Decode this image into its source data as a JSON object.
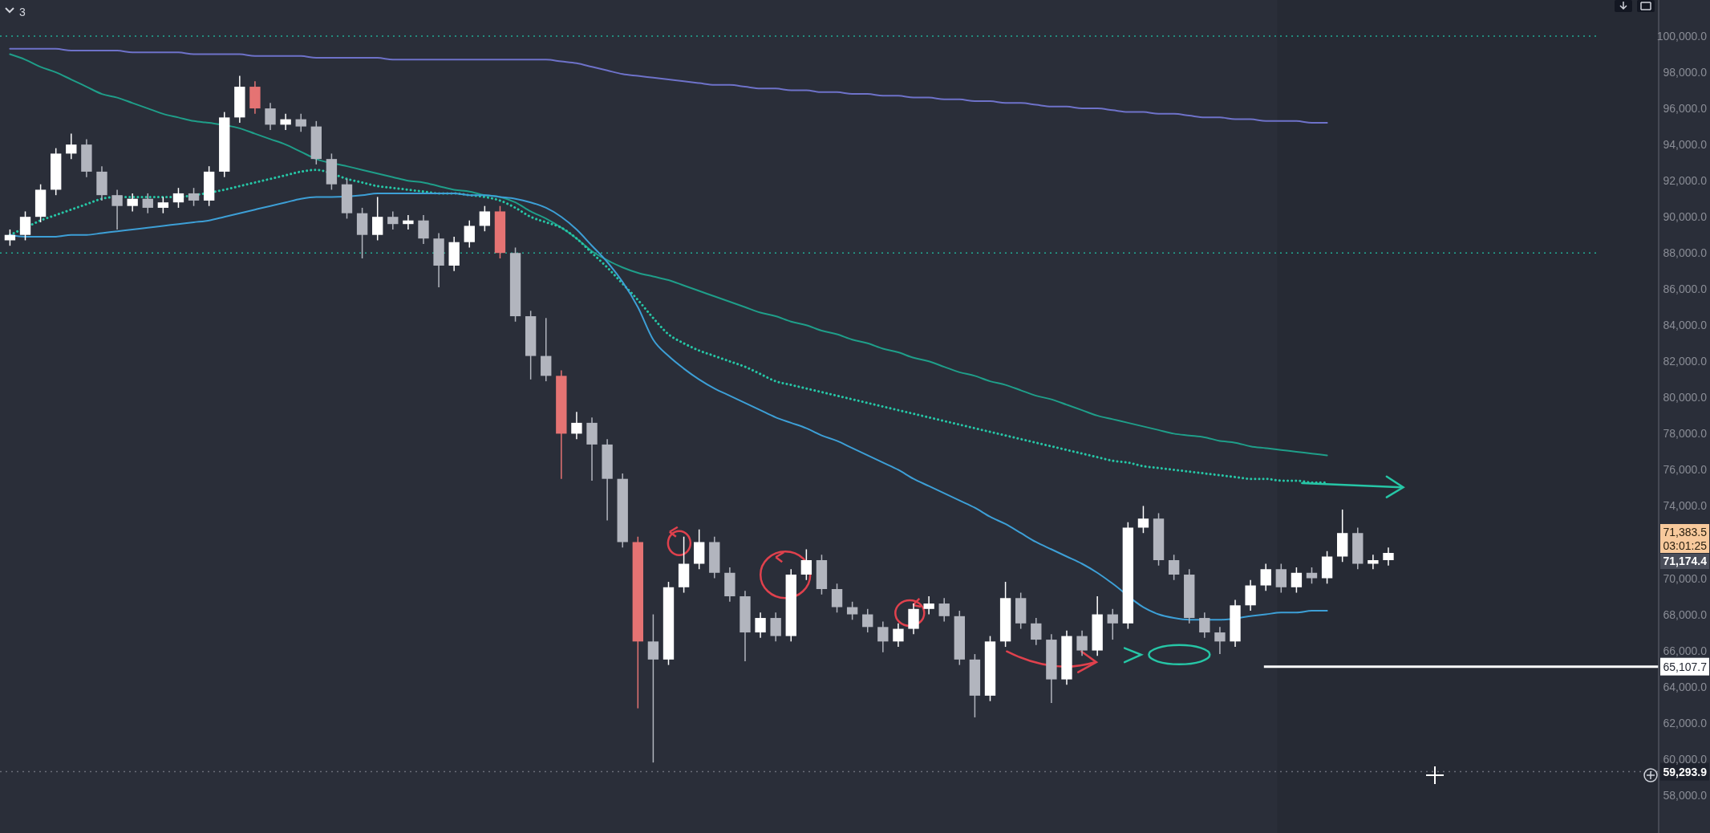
{
  "chart_data": {
    "type": "candlestick",
    "categories": [
      null,
      null,
      null,
      null,
      null,
      null,
      null,
      null,
      null,
      null,
      null,
      null,
      null,
      null,
      null,
      null,
      null,
      null,
      null,
      null,
      null,
      null,
      null,
      null,
      null,
      null,
      null,
      null,
      null,
      null,
      null,
      null,
      null,
      null,
      null,
      null,
      null,
      null,
      null,
      null,
      null,
      null,
      null,
      null,
      null,
      null,
      null,
      null,
      null,
      null,
      null,
      null,
      null,
      null,
      null,
      null,
      null,
      null,
      null,
      null,
      null,
      null,
      null,
      null,
      null,
      null,
      null,
      null,
      null,
      null,
      null,
      null,
      null,
      null,
      null,
      null,
      null,
      null,
      null,
      null,
      null,
      null,
      null,
      null,
      null,
      null,
      null,
      null,
      null,
      null,
      null,
      null,
      null,
      null,
      null,
      null,
      null,
      null,
      null,
      null,
      null,
      null,
      null,
      null,
      null,
      null,
      null,
      null
    ],
    "ohlc": [
      [
        88700,
        89300,
        88400,
        89000
      ],
      [
        89000,
        90300,
        88700,
        90000
      ],
      [
        90000,
        91800,
        89700,
        91500
      ],
      [
        91500,
        93800,
        91200,
        93500
      ],
      [
        93500,
        94600,
        93200,
        94000
      ],
      [
        94000,
        94300,
        92200,
        92500
      ],
      [
        92500,
        92800,
        90900,
        91200
      ],
      [
        91200,
        91500,
        89300,
        90600
      ],
      [
        90600,
        91300,
        90300,
        91000
      ],
      [
        91000,
        91300,
        90200,
        90500
      ],
      [
        90500,
        91100,
        90200,
        90800
      ],
      [
        90800,
        91600,
        90500,
        91300
      ],
      [
        91300,
        91600,
        90600,
        90900
      ],
      [
        90900,
        92800,
        90600,
        92500
      ],
      [
        92500,
        95800,
        92200,
        95500
      ],
      [
        95500,
        97800,
        95200,
        97200
      ],
      [
        97200,
        97500,
        95700,
        96000
      ],
      [
        96000,
        96300,
        94800,
        95100
      ],
      [
        95100,
        95700,
        94800,
        95400
      ],
      [
        95400,
        95700,
        94700,
        95000
      ],
      [
        95000,
        95300,
        92900,
        93200
      ],
      [
        93200,
        93500,
        91500,
        91800
      ],
      [
        91800,
        92100,
        89900,
        90200
      ],
      [
        90200,
        90500,
        87700,
        89000
      ],
      [
        89000,
        91100,
        88700,
        90000
      ],
      [
        90000,
        90300,
        89300,
        89600
      ],
      [
        89600,
        90100,
        89300,
        89800
      ],
      [
        89800,
        90100,
        88500,
        88800
      ],
      [
        88800,
        89100,
        86100,
        87300
      ],
      [
        87300,
        88900,
        87000,
        88600
      ],
      [
        88600,
        89800,
        88300,
        89500
      ],
      [
        89500,
        90600,
        89200,
        90300
      ],
      [
        90300,
        90600,
        87700,
        88000
      ],
      [
        88000,
        88300,
        84200,
        84500
      ],
      [
        84500,
        84800,
        81000,
        82300
      ],
      [
        82300,
        84400,
        80900,
        81200
      ],
      [
        81200,
        81500,
        75500,
        78000
      ],
      [
        78000,
        79200,
        77700,
        78600
      ],
      [
        78600,
        78900,
        75400,
        77400
      ],
      [
        77400,
        77700,
        73200,
        75500
      ],
      [
        75500,
        75800,
        71700,
        72000
      ],
      [
        72000,
        72300,
        62800,
        66500
      ],
      [
        66500,
        68000,
        59800,
        65500
      ],
      [
        65500,
        69800,
        65200,
        69500
      ],
      [
        69500,
        72300,
        69200,
        70800
      ],
      [
        70800,
        72700,
        70500,
        72000
      ],
      [
        72000,
        72300,
        70000,
        70300
      ],
      [
        70300,
        70600,
        68700,
        69000
      ],
      [
        69000,
        69300,
        65400,
        67000
      ],
      [
        67000,
        68100,
        66700,
        67800
      ],
      [
        67800,
        68100,
        66500,
        66800
      ],
      [
        66800,
        70500,
        66500,
        70200
      ],
      [
        70200,
        71600,
        69900,
        71000
      ],
      [
        71000,
        71300,
        69100,
        69400
      ],
      [
        69400,
        69700,
        68100,
        68400
      ],
      [
        68400,
        68700,
        67700,
        68000
      ],
      [
        68000,
        68300,
        67000,
        67300
      ],
      [
        67300,
        67600,
        65900,
        66500
      ],
      [
        66500,
        67500,
        66200,
        67200
      ],
      [
        67200,
        68600,
        66900,
        68300
      ],
      [
        68300,
        69000,
        68000,
        68600
      ],
      [
        68600,
        68900,
        67600,
        67900
      ],
      [
        67900,
        68200,
        65200,
        65500
      ],
      [
        65500,
        65800,
        62300,
        63500
      ],
      [
        63500,
        66800,
        63200,
        66500
      ],
      [
        66500,
        69800,
        66200,
        68900
      ],
      [
        68900,
        69200,
        67200,
        67500
      ],
      [
        67500,
        67800,
        66300,
        66600
      ],
      [
        66600,
        66900,
        63100,
        64400
      ],
      [
        64400,
        67100,
        64100,
        66800
      ],
      [
        66800,
        67100,
        65700,
        66000
      ],
      [
        66000,
        69000,
        65700,
        68000
      ],
      [
        68000,
        68300,
        66600,
        67500
      ],
      [
        67500,
        73100,
        67200,
        72800
      ],
      [
        72800,
        74000,
        72500,
        73300
      ],
      [
        73300,
        73600,
        70700,
        71000
      ],
      [
        71000,
        71300,
        69900,
        70200
      ],
      [
        70200,
        70500,
        67500,
        67800
      ],
      [
        67800,
        68100,
        66700,
        67000
      ],
      [
        67000,
        67300,
        65800,
        66500
      ],
      [
        66500,
        68800,
        66200,
        68500
      ],
      [
        68500,
        69900,
        68200,
        69600
      ],
      [
        69600,
        70800,
        69300,
        70500
      ],
      [
        70500,
        70800,
        69200,
        69500
      ],
      [
        69500,
        70600,
        69200,
        70300
      ],
      [
        70300,
        70600,
        69700,
        70000
      ],
      [
        70000,
        71500,
        69700,
        71200
      ],
      [
        71200,
        73800,
        70900,
        72500
      ],
      [
        72500,
        72800,
        70500,
        70800
      ],
      [
        70800,
        71300,
        70500,
        71000
      ],
      [
        71000,
        71700,
        70700,
        71400
      ],
      null,
      null,
      null,
      null,
      null,
      null,
      null,
      null,
      null,
      null,
      null,
      null,
      null,
      null,
      null,
      null,
      null
    ],
    "colors": [
      "#ffffff",
      "#ffffff",
      "#ffffff",
      "#ffffff",
      "#ffffff",
      "#b2b5be",
      "#b2b5be",
      "#b2b5be",
      "#ffffff",
      "#b2b5be",
      "#ffffff",
      "#ffffff",
      "#b2b5be",
      "#ffffff",
      "#ffffff",
      "#ffffff",
      "#e57373",
      "#b2b5be",
      "#ffffff",
      "#b2b5be",
      "#b2b5be",
      "#b2b5be",
      "#b2b5be",
      "#b2b5be",
      "#ffffff",
      "#b2b5be",
      "#ffffff",
      "#b2b5be",
      "#b2b5be",
      "#ffffff",
      "#ffffff",
      "#ffffff",
      "#e57373",
      "#b2b5be",
      "#b2b5be",
      "#b2b5be",
      "#e57373",
      "#ffffff",
      "#b2b5be",
      "#b2b5be",
      "#b2b5be",
      "#e57373",
      "#b2b5be",
      "#ffffff",
      "#ffffff",
      "#ffffff",
      "#b2b5be",
      "#b2b5be",
      "#b2b5be",
      "#ffffff",
      "#b2b5be",
      "#ffffff",
      "#ffffff",
      "#b2b5be",
      "#b2b5be",
      "#b2b5be",
      "#b2b5be",
      "#b2b5be",
      "#ffffff",
      "#ffffff",
      "#ffffff",
      "#b2b5be",
      "#b2b5be",
      "#b2b5be",
      "#ffffff",
      "#ffffff",
      "#b2b5be",
      "#b2b5be",
      "#b2b5be",
      "#ffffff",
      "#b2b5be",
      "#ffffff",
      "#b2b5be",
      "#ffffff",
      "#ffffff",
      "#b2b5be",
      "#b2b5be",
      "#b2b5be",
      "#b2b5be",
      "#b2b5be",
      "#ffffff",
      "#ffffff",
      "#ffffff",
      "#b2b5be",
      "#ffffff",
      "#b2b5be",
      "#ffffff",
      "#ffffff",
      "#b2b5be",
      "#ffffff",
      "#ffffff",
      null,
      null,
      null,
      null,
      null,
      null,
      null,
      null,
      null,
      null,
      null,
      null,
      null,
      null,
      null,
      null,
      null
    ],
    "series": [
      {
        "type": "line",
        "color": "#6e72c9",
        "line_style": "solid",
        "values": [
          99300,
          99300,
          99300,
          99300,
          99200,
          99200,
          99200,
          99200,
          99100,
          99100,
          99100,
          99100,
          99000,
          99000,
          99000,
          99000,
          98900,
          98900,
          98900,
          98900,
          98800,
          98800,
          98800,
          98800,
          98800,
          98700,
          98700,
          98700,
          98700,
          98700,
          98700,
          98700,
          98700,
          98700,
          98700,
          98700,
          98600,
          98500,
          98300,
          98100,
          97900,
          97800,
          97700,
          97600,
          97500,
          97400,
          97300,
          97300,
          97200,
          97100,
          97100,
          97000,
          97000,
          96900,
          96900,
          96800,
          96800,
          96700,
          96700,
          96600,
          96600,
          96500,
          96500,
          96400,
          96400,
          96300,
          96300,
          96200,
          96100,
          96100,
          96000,
          96000,
          95900,
          95800,
          95800,
          95700,
          95700,
          95600,
          95500,
          95500,
          95400,
          95400,
          95300,
          95300,
          95300,
          95200,
          95200,
          null,
          null,
          null,
          null,
          null,
          null,
          null,
          null,
          null,
          null,
          null,
          null,
          null,
          null,
          null,
          null,
          null,
          null,
          null,
          null,
          null
        ]
      },
      {
        "type": "line",
        "color": "#1f9e89",
        "line_style": "solid",
        "values": [
          99000,
          98700,
          98300,
          98000,
          97600,
          97200,
          96800,
          96600,
          96300,
          96000,
          95700,
          95500,
          95300,
          95200,
          null,
          94900,
          94600,
          94300,
          94000,
          93600,
          93200,
          null,
          92800,
          92600,
          92400,
          92200,
          92000,
          91900,
          91700,
          91500,
          91400,
          91200,
          91100,
          90800,
          90300,
          89900,
          89400,
          88800,
          88100,
          87600,
          87200,
          86900,
          86700,
          86500,
          86200,
          85900,
          85600,
          85300,
          85000,
          84700,
          84500,
          84200,
          84000,
          83700,
          83500,
          83200,
          83000,
          82700,
          82500,
          82200,
          82000,
          81700,
          81400,
          81200,
          80900,
          80700,
          80400,
          80100,
          79900,
          79600,
          79300,
          79000,
          78800,
          78600,
          78400,
          78200,
          78000,
          77900,
          77800,
          77600,
          77500,
          77300,
          77200,
          77100,
          77000,
          76900,
          76800,
          null,
          null,
          null,
          null,
          null,
          null,
          null,
          null,
          null,
          null,
          null,
          null,
          null,
          null,
          null,
          null,
          null,
          null,
          null,
          null,
          null
        ]
      },
      {
        "type": "line",
        "color": "#26c6a6",
        "line_style": "dotted",
        "values": [
          89000,
          89400,
          89800,
          90100,
          90400,
          90700,
          91000,
          91100,
          91100,
          91100,
          91100,
          91100,
          91200,
          null,
          91500,
          91700,
          91900,
          92100,
          92300,
          92500,
          92600,
          92400,
          92100,
          91900,
          91700,
          91600,
          91500,
          91400,
          91300,
          91300,
          91200,
          91100,
          90900,
          90500,
          90000,
          89700,
          89400,
          88800,
          88000,
          87200,
          86300,
          85400,
          84400,
          83500,
          83000,
          82600,
          82300,
          82000,
          81700,
          81300,
          80900,
          80700,
          80500,
          80300,
          80100,
          79900,
          79700,
          79500,
          79300,
          79100,
          78900,
          78700,
          78500,
          78300,
          78100,
          77900,
          77700,
          77500,
          77300,
          77100,
          76900,
          76700,
          76500,
          76400,
          76200,
          76100,
          76000,
          75900,
          75800,
          75700,
          75600,
          75500,
          75500,
          75400,
          75400,
          75300,
          75300,
          null,
          null,
          null,
          null,
          null,
          null,
          null,
          null,
          null,
          null,
          null,
          null,
          null,
          null,
          null,
          null,
          null,
          null,
          null,
          null,
          null
        ]
      },
      {
        "type": "line",
        "color": "#3d9fd6",
        "line_style": "solid",
        "values": [
          89000,
          88900,
          88900,
          88900,
          89000,
          89000,
          89100,
          89200,
          89300,
          89400,
          89500,
          89600,
          89700,
          89800,
          90000,
          90200,
          90400,
          90600,
          90800,
          91000,
          91100,
          91100,
          null,
          91200,
          91300,
          91300,
          91300,
          91300,
          91300,
          91300,
          91200,
          91200,
          91100,
          91000,
          90800,
          90500,
          90000,
          89300,
          88400,
          87500,
          86400,
          85000,
          83200,
          82300,
          81600,
          81000,
          80500,
          80100,
          79700,
          79300,
          78900,
          78600,
          78300,
          77900,
          77600,
          77200,
          76800,
          76400,
          76000,
          75500,
          75100,
          74700,
          74300,
          73900,
          73400,
          73000,
          72500,
          72000,
          71600,
          71200,
          70800,
          70300,
          69700,
          null,
          68400,
          68000,
          67800,
          67700,
          null,
          67700,
          null,
          67900,
          68000,
          68100,
          68100,
          68200,
          68200,
          null,
          null,
          null,
          null,
          null,
          null,
          null,
          null,
          null,
          null,
          null,
          null,
          null,
          null,
          null,
          null,
          null,
          null,
          null,
          null,
          null
        ]
      }
    ],
    "ylim": [
      55900,
      102000
    ],
    "yticks": [
      {
        "value": 58000,
        "label": "58,000.0"
      },
      {
        "value": 60000,
        "label": "60,000.0"
      },
      {
        "value": 62000,
        "label": "62,000.0"
      },
      {
        "value": 64000,
        "label": "64,000.0"
      },
      {
        "value": 66000,
        "label": "66,000.0"
      },
      {
        "value": 68000,
        "label": "68,000.0"
      },
      {
        "value": 70000,
        "label": "70,000.0"
      },
      {
        "value": 74000,
        "label": "74,000.0"
      },
      {
        "value": 76000,
        "label": "76,000.0"
      },
      {
        "value": 78000,
        "label": "78,000.0"
      },
      {
        "value": 80000,
        "label": "80,000.0"
      },
      {
        "value": 82000,
        "label": "82,000.0"
      },
      {
        "value": 84000,
        "label": "84,000.0"
      },
      {
        "value": 86000,
        "label": "86,000.0"
      },
      {
        "value": 88000,
        "label": "88,000.0"
      },
      {
        "value": 90000,
        "label": "90,000.0"
      },
      {
        "value": 92000,
        "label": "92,000.0"
      },
      {
        "value": 94000,
        "label": "94,000.0"
      },
      {
        "value": 96000,
        "label": "96,000.0"
      },
      {
        "value": 98000,
        "label": "98,000.0"
      },
      {
        "value": 100000,
        "label": "100,000.0"
      }
    ],
    "ref_lines": [
      {
        "axis": "y",
        "value": 100000,
        "color": "#22ab94",
        "line_style": "dotted"
      },
      {
        "axis": "y",
        "value": 88000,
        "color": "#22ab94",
        "line_style": "dotted"
      },
      {
        "axis": "y",
        "value": 65107.7,
        "label": "65,107.7",
        "color": "#ffffff",
        "line_style": "solid"
      },
      {
        "axis": "y",
        "value": 59293.9,
        "label": "59,293.9",
        "color": "#6a6d78",
        "line_style": "dotted"
      }
    ],
    "annotations": [
      "3",
      "71,383.5",
      "03:01:25",
      "71,174.4"
    ],
    "tick_labels": "y"
  }
}
